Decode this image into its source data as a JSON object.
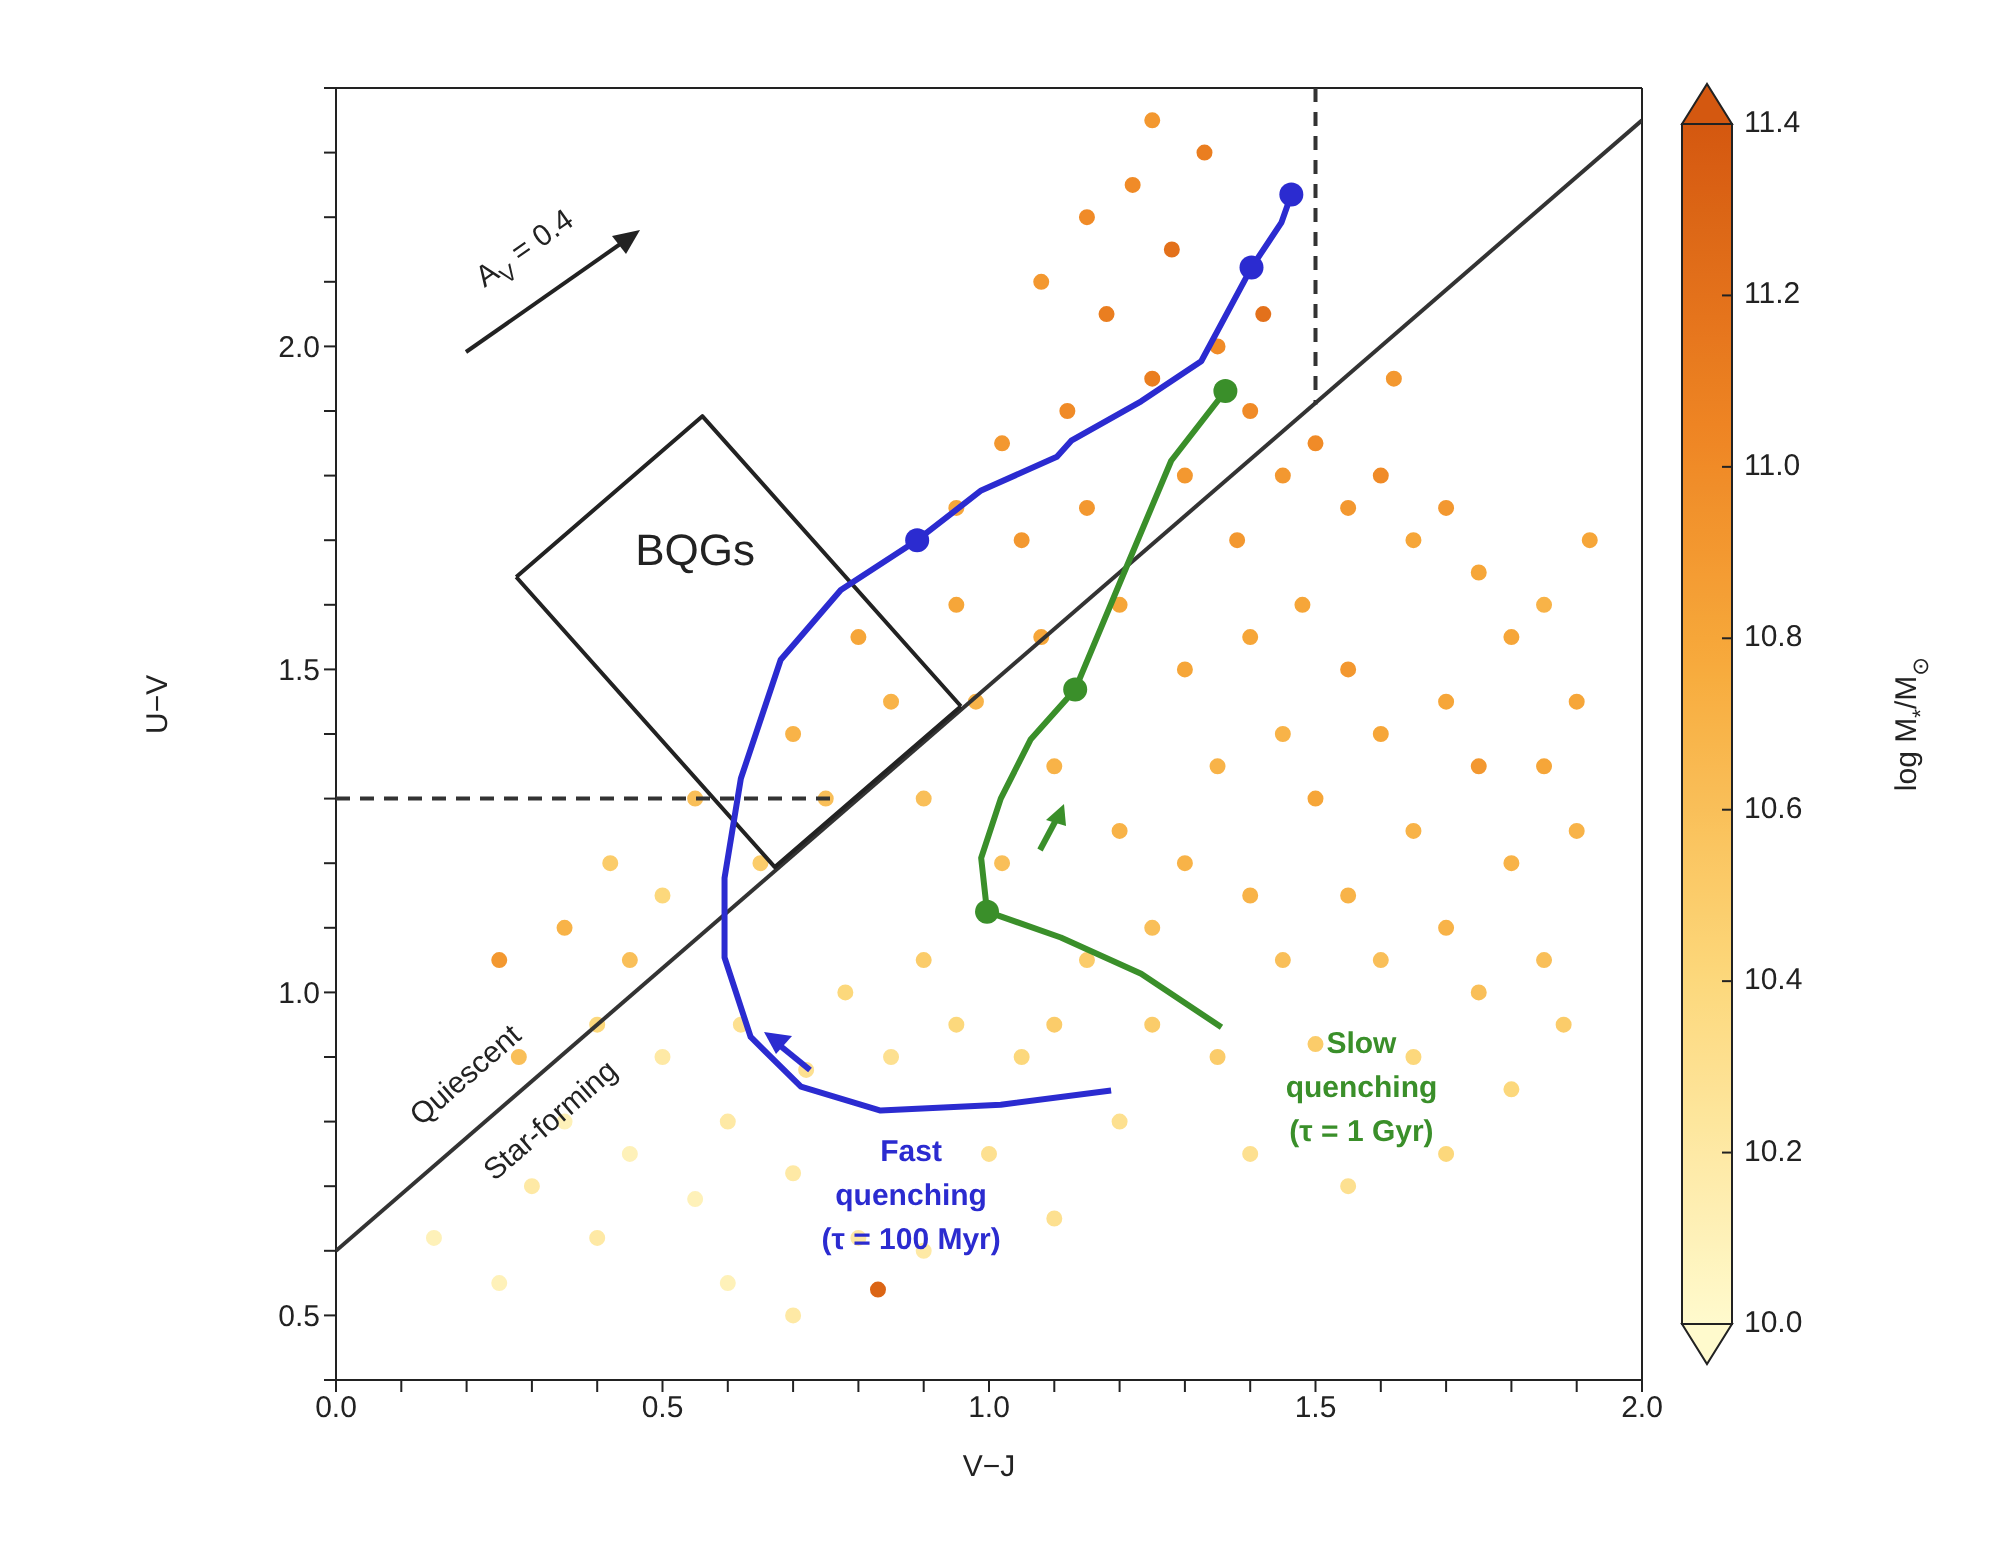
{
  "chart_data": {
    "type": "scatter",
    "xlabel": "V−J",
    "ylabel": "U−V",
    "clabel": "log M$_{*}$/M$_{⊙}$",
    "xlim": [
      0,
      2
    ],
    "ylim": [
      0.4,
      2.4
    ],
    "xticks": [
      {
        "value": 0,
        "label": "0.0"
      },
      {
        "value": 0.1,
        "label": null
      },
      {
        "value": 0.2,
        "label": null
      },
      {
        "value": 0.3,
        "label": null
      },
      {
        "value": 0.4,
        "label": null
      },
      0.5,
      {
        "value": 0.6,
        "label": null
      },
      {
        "value": 0.7,
        "label": null
      },
      {
        "value": 0.8,
        "label": null
      },
      {
        "value": 0.9,
        "label": null
      },
      {
        "value": 1,
        "label": "1.0"
      },
      {
        "value": 1.1,
        "label": null
      },
      {
        "value": 1.2,
        "label": null
      },
      {
        "value": 1.3,
        "label": null
      },
      {
        "value": 1.4,
        "label": null
      },
      1.5,
      {
        "value": 1.6,
        "label": null
      },
      {
        "value": 1.7,
        "label": null
      },
      {
        "value": 1.8,
        "label": null
      },
      {
        "value": 1.9,
        "label": null
      },
      {
        "value": 2,
        "label": "2.0"
      }
    ],
    "yticks": [
      {
        "value": 0.4,
        "label": null
      },
      0.5,
      {
        "value": 0.6,
        "label": null
      },
      {
        "value": 0.7,
        "label": null
      },
      {
        "value": 0.8,
        "label": null
      },
      {
        "value": 0.9,
        "label": null
      },
      {
        "value": 1,
        "label": "1.0"
      },
      {
        "value": 1.1,
        "label": null
      },
      {
        "value": 1.2,
        "label": null
      },
      {
        "value": 1.3,
        "label": null
      },
      {
        "value": 1.4,
        "label": null
      },
      1.5,
      {
        "value": 1.6,
        "label": null
      },
      {
        "value": 1.7,
        "label": null
      },
      {
        "value": 1.8,
        "label": null
      },
      {
        "value": 1.9,
        "label": null
      },
      {
        "value": 2,
        "label": "2.0"
      },
      {
        "value": 2.1,
        "label": null
      },
      {
        "value": 2.2,
        "label": null
      },
      {
        "value": 2.3,
        "label": null
      },
      {
        "value": 2.4,
        "label": null
      }
    ],
    "clim": [
      10,
      11.4
    ],
    "cticks": [
      {
        "value": 10,
        "label": "10.0"
      },
      10.2,
      10.4,
      10.6,
      10.8,
      {
        "value": 11,
        "label": "11.0"
      },
      11.2,
      11.4
    ],
    "annotations": [
      "A$_{V}$ = 0.4",
      "BQGs",
      "Quiescent",
      "Star-forming"
    ],
    "series": [
      {
        "x": [
          0.15,
          0.25,
          0.3,
          0.35,
          0.4,
          0.45,
          0.5,
          0.55,
          0.6,
          0.62,
          0.7,
          0.72,
          0.78,
          0.8,
          0.85,
          0.9,
          0.95,
          1.0,
          1.05,
          0.45,
          0.35,
          0.42,
          0.5,
          0.55,
          0.65,
          0.7,
          0.75,
          0.8,
          0.85,
          0.9,
          0.95,
          0.98,
          1.02,
          1.05,
          1.08,
          1.1,
          1.12,
          1.15,
          1.18,
          1.2,
          1.22,
          1.25,
          1.28,
          1.3,
          1.33,
          1.35,
          1.38,
          1.4,
          1.42,
          1.45,
          1.48,
          1.5,
          1.55,
          1.6,
          1.65,
          1.7,
          1.75,
          1.8,
          1.85,
          1.9,
          1.3,
          1.35,
          1.4,
          1.45,
          1.5,
          1.55,
          1.6,
          1.65,
          1.7,
          1.75,
          1.8,
          1.85,
          1.9,
          1.2,
          1.25,
          1.3,
          1.4,
          1.45,
          1.55,
          1.6,
          1.7,
          1.75,
          1.85,
          1.15,
          1.1,
          1.25,
          1.35,
          1.5,
          1.65,
          1.8,
          1.2,
          1.4,
          1.55,
          1.7,
          0.9,
          1.1,
          0.6,
          0.7,
          0.83,
          1.02,
          0.95,
          1.15,
          1.25,
          1.08,
          0.25,
          0.28,
          1.62,
          1.92,
          1.88,
          0.4
        ],
        "values": [
          0.62,
          0.55,
          0.7,
          0.8,
          0.62,
          0.75,
          0.9,
          0.68,
          0.8,
          0.95,
          0.72,
          0.88,
          1.0,
          0.62,
          0.9,
          1.05,
          0.95,
          0.75,
          0.9,
          1.05,
          1.1,
          1.2,
          1.15,
          1.3,
          1.2,
          1.4,
          1.3,
          1.55,
          1.45,
          1.3,
          1.6,
          1.45,
          1.2,
          1.7,
          1.55,
          1.35,
          1.9,
          1.75,
          2.05,
          1.6,
          2.25,
          1.95,
          2.15,
          1.8,
          2.3,
          2.0,
          1.7,
          1.9,
          2.05,
          1.8,
          1.6,
          1.85,
          1.75,
          1.8,
          1.7,
          1.75,
          1.65,
          1.55,
          1.6,
          1.45,
          1.5,
          1.35,
          1.55,
          1.4,
          1.3,
          1.5,
          1.4,
          1.25,
          1.45,
          1.35,
          1.2,
          1.35,
          1.25,
          1.25,
          1.1,
          1.2,
          1.15,
          1.05,
          1.15,
          1.05,
          1.1,
          1.0,
          1.05,
          1.05,
          0.95,
          0.95,
          0.9,
          0.92,
          0.9,
          0.85,
          0.8,
          0.75,
          0.7,
          0.75,
          0.6,
          0.65,
          0.55,
          0.5,
          0.54,
          1.85,
          1.75,
          2.2,
          2.35,
          2.1,
          1.05,
          0.9,
          1.95,
          1.7,
          0.95,
          0.95
        ],
        "colors": [
          "#fef1b9",
          "#fef1b9",
          "#fee9a5",
          "#fef1b9",
          "#fee9a5",
          "#fef1b9",
          "#fee9a5",
          "#fef1b9",
          "#fee9a5",
          "#fde090",
          "#fee9a5",
          "#fde090",
          "#fcd87c",
          "#fee9a5",
          "#fde090",
          "#fbcc6a",
          "#fcd87c",
          "#fde090",
          "#fcd87c",
          "#f9bf59",
          "#f8b348",
          "#fbcc6a",
          "#fcd87c",
          "#f9bf59",
          "#fbcc6a",
          "#f8b348",
          "#f9bf59",
          "#f6a639",
          "#f8b348",
          "#f9bf59",
          "#f6a639",
          "#f8b348",
          "#f9bf59",
          "#f39830",
          "#f6a639",
          "#f8b348",
          "#f08b28",
          "#f39830",
          "#ea7e20",
          "#f6a639",
          "#f08b28",
          "#ea7e20",
          "#e3711b",
          "#f39830",
          "#ea7e20",
          "#f08b28",
          "#f39830",
          "#f08b28",
          "#e3711b",
          "#f39830",
          "#f6a639",
          "#f08b28",
          "#f39830",
          "#f08b28",
          "#f6a639",
          "#f39830",
          "#f6a639",
          "#f6a639",
          "#f8b348",
          "#f6a639",
          "#f6a639",
          "#f8b348",
          "#f6a639",
          "#f8b348",
          "#f6a639",
          "#f39830",
          "#f6a639",
          "#f8b348",
          "#f6a639",
          "#f39830",
          "#f8b348",
          "#f6a639",
          "#f8b348",
          "#f8b348",
          "#f9bf59",
          "#f8b348",
          "#f8b348",
          "#f9bf59",
          "#f8b348",
          "#f9bf59",
          "#f8b348",
          "#f9bf59",
          "#f9bf59",
          "#fbcc6a",
          "#fbcc6a",
          "#fbcc6a",
          "#fbcc6a",
          "#fbcc6a",
          "#fcd87c",
          "#fcd87c",
          "#fde090",
          "#fde090",
          "#fde090",
          "#fcd87c",
          "#fee9a5",
          "#fde090",
          "#fef1b9",
          "#fee9a5",
          "#db6515",
          "#f39830",
          "#f6a639",
          "#f08b28",
          "#f39830",
          "#f39830",
          "#f39830",
          "#f9bf59",
          "#f39830",
          "#f6a639",
          "#fbcc6a",
          "#fcd87c"
        ],
        "cvalues": [
          10.1,
          10.1,
          10.2,
          10.1,
          10.2,
          10.1,
          10.2,
          10.1,
          10.2,
          10.3,
          10.2,
          10.3,
          10.4,
          10.2,
          10.3,
          10.5,
          10.4,
          10.3,
          10.4,
          10.6,
          10.7,
          10.5,
          10.4,
          10.6,
          10.5,
          10.7,
          10.6,
          10.8,
          10.7,
          10.6,
          10.8,
          10.7,
          10.6,
          10.9,
          10.8,
          10.7,
          11.0,
          10.9,
          11.1,
          10.8,
          11.0,
          11.1,
          11.2,
          10.9,
          11.1,
          11.0,
          10.9,
          11.0,
          11.2,
          10.9,
          10.8,
          11.0,
          10.9,
          11.0,
          10.8,
          10.9,
          10.8,
          10.8,
          10.7,
          10.8,
          10.8,
          10.7,
          10.8,
          10.7,
          10.8,
          10.9,
          10.8,
          10.7,
          10.8,
          10.9,
          10.7,
          10.8,
          10.7,
          10.7,
          10.6,
          10.7,
          10.7,
          10.6,
          10.7,
          10.6,
          10.7,
          10.6,
          10.6,
          10.5,
          10.5,
          10.5,
          10.5,
          10.5,
          10.4,
          10.4,
          10.3,
          10.3,
          10.3,
          10.4,
          10.2,
          10.3,
          10.1,
          10.2,
          11.3,
          10.9,
          10.8,
          11.0,
          10.9,
          10.9,
          10.9,
          10.6,
          10.9,
          10.8,
          10.5,
          10.4
        ]
      },
      {
        "type": "line",
        "color": "#333333",
        "line_style": "solid",
        "marker": "none",
        "x": [
          0,
          2
        ],
        "values": [
          0.6,
          2.35
        ]
      },
      {
        "type": "line",
        "color": "#333333",
        "line_style": "dashed",
        "marker": "none",
        "x": [
          0,
          0.76
        ],
        "values": [
          1.3,
          1.3
        ]
      },
      {
        "type": "line",
        "color": "#333333",
        "line_style": "dashed",
        "marker": "none",
        "x": [
          1.5,
          1.5
        ],
        "values": [
          2.4,
          1.91
        ]
      },
      {
        "type": "line",
        "color": "#222222",
        "line_style": "solid",
        "marker": "none",
        "x": [
          0.276,
          0.561,
          0.957
        ],
        "values": [
          1.643,
          1.892,
          1.443
        ]
      },
      {
        "type": "line",
        "color": "#222222",
        "line_style": "solid",
        "marker": "none",
        "x": [
          0.276,
          0.672,
          0.957
        ],
        "values": [
          1.643,
          1.194,
          1.443
        ]
      },
      {
        "type": "line",
        "name": "Fast quenching (τ = 100 Myr)",
        "color": "#2b2bd0",
        "line_style": "solid",
        "marker": "none",
        "x": [
          1.187,
          1.018,
          0.834,
          0.712,
          0.635,
          0.595,
          0.595,
          0.62,
          0.681,
          0.773,
          0.89,
          0.988,
          1.104,
          1.126,
          1.233,
          1.325,
          1.402,
          1.448,
          1.463
        ],
        "values": [
          0.848,
          0.826,
          0.817,
          0.854,
          0.931,
          1.054,
          1.177,
          1.331,
          1.515,
          1.623,
          1.7,
          1.777,
          1.829,
          1.854,
          1.915,
          1.977,
          2.122,
          2.192,
          2.235
        ]
      },
      {
        "type": "scatter",
        "color": "#2b2bd0",
        "marker": "circle",
        "x": [
          0.89,
          1.402,
          1.463
        ],
        "values": [
          1.7,
          2.122,
          2.235
        ]
      },
      {
        "type": "line",
        "name": "Slow quenching (τ = 1 Gyr)",
        "color": "#3a8f2a",
        "line_style": "solid",
        "marker": "none",
        "x": [
          1.356,
          1.233,
          1.11,
          0.997,
          0.988,
          1.018,
          1.064,
          1.132,
          1.202,
          1.279,
          1.362
        ],
        "values": [
          0.946,
          1.029,
          1.085,
          1.125,
          1.208,
          1.3,
          1.392,
          1.469,
          1.638,
          1.823,
          1.931
        ]
      },
      {
        "type": "scatter",
        "color": "#3a8f2a",
        "marker": "circle",
        "x": [
          0.997,
          1.132,
          1.362
        ],
        "values": [
          1.125,
          1.469,
          1.931
        ]
      }
    ]
  }
}
